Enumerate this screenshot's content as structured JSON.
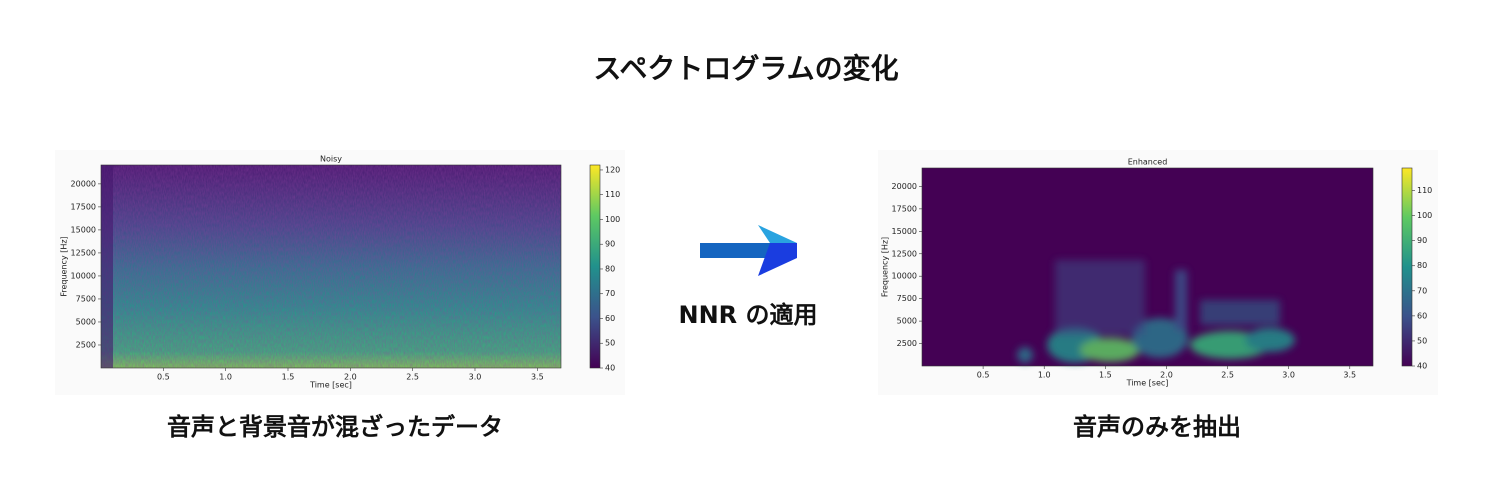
{
  "title": "スペクトログラムの変化",
  "arrow_label": "NNR の適用",
  "captions": [
    "音声と背景音が混ざったデータ",
    "音声のみを抽出"
  ],
  "chart_data": [
    {
      "type": "heatmap",
      "title": "Noisy",
      "xlabel": "Time [sec]",
      "ylabel": "Frequency [Hz]",
      "xlim": [
        0,
        3.69
      ],
      "xticks": [
        0.5,
        {
          "value": 1,
          "label": "1.0"
        },
        1.5,
        {
          "value": 2,
          "label": "2.0"
        },
        2.5,
        {
          "value": 3,
          "label": "3.0"
        },
        3.5
      ],
      "ylim": [
        0,
        22050
      ],
      "yticks": [
        2500,
        5000,
        7500,
        10000,
        12500,
        15000,
        17500,
        20000
      ],
      "clim": [
        40,
        122
      ],
      "cticks": [
        40,
        50,
        60,
        70,
        80,
        90,
        100,
        110,
        120
      ]
    },
    {
      "type": "heatmap",
      "title": "Enhanced",
      "xlabel": "Time [sec]",
      "ylabel": "Frequency [Hz]",
      "xlim": [
        0,
        3.69
      ],
      "xticks": [
        0.5,
        {
          "value": 1,
          "label": "1.0"
        },
        1.5,
        {
          "value": 2,
          "label": "2.0"
        },
        2.5,
        {
          "value": 3,
          "label": "3.0"
        },
        3.5
      ],
      "ylim": [
        0,
        22050
      ],
      "yticks": [
        2500,
        5000,
        7500,
        10000,
        12500,
        15000,
        17500,
        20000
      ],
      "clim": [
        40,
        119
      ],
      "cticks": [
        40,
        50,
        60,
        70,
        80,
        90,
        100,
        110
      ]
    }
  ]
}
